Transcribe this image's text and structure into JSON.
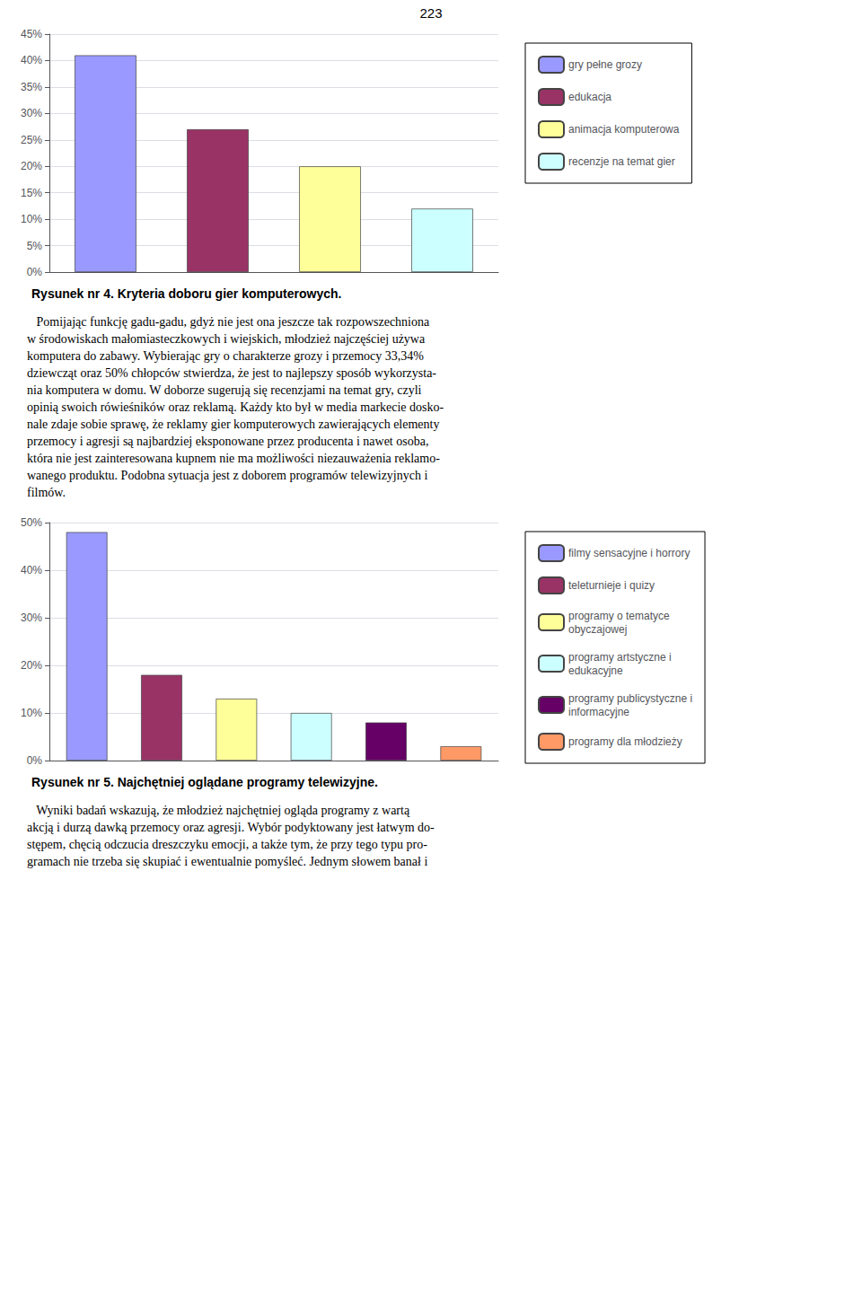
{
  "chart_data": [
    {
      "type": "bar",
      "subtitle": "223",
      "title": "Rysunek nr 4. Kryteria doboru gier komputerowych.",
      "categories": [
        "gry pełne grozy",
        "edukacja",
        "animacja komputerowa",
        "recenzje na temat gier"
      ],
      "values": [
        41,
        27,
        20,
        12
      ],
      "colors": [
        "#9999ff",
        "#993366",
        "#ffff99",
        "#ccffff"
      ],
      "ylim": [
        0,
        45
      ],
      "yticks": [
        {
          "value": 0,
          "label": "0%"
        },
        {
          "value": 5,
          "label": "5%"
        },
        {
          "value": 10,
          "label": "10%"
        },
        {
          "value": 15,
          "label": "15%"
        },
        {
          "value": 20,
          "label": "20%"
        },
        {
          "value": 25,
          "label": "25%"
        },
        {
          "value": 30,
          "label": "30%"
        },
        {
          "value": 35,
          "label": "35%"
        },
        {
          "value": 40,
          "label": "40%"
        },
        {
          "value": 45,
          "label": "45%"
        }
      ],
      "grid": true,
      "legend": "right",
      "tick_labels": "y",
      "annotations": [
        "   Pomijając funkcję gadu-gadu, gdyż nie jest ona jeszcze tak rozpowszechniona",
        "w środowiskach małomiasteczkowych i wiejskich, młodzież najczęściej używa",
        "komputera do zabawy. Wybierając gry o charakterze grozy i przemocy 33,34%",
        "dziewcząt oraz 50% chłopców stwierdza, że jest to najlepszy sposób wykorzysta-",
        "nia komputera w domu. W doborze sugerują się recenzjami na temat gry, czyli",
        "opinią swoich rówieśników oraz reklamą. Każdy kto był w media markecie dosko-",
        "nale zdaje sobie sprawę, że reklamy gier komputerowych zawierających elementy",
        "przemocy i agresji są najbardziej eksponowane przez producenta i nawet osoba,",
        "która nie jest zainteresowana kupnem nie ma możliwości niezauważenia reklamo-",
        "wanego produktu. Podobna sytuacja jest z doborem programów telewizyjnych i",
        "filmów."
      ]
    },
    {
      "type": "bar",
      "title": "Rysunek nr 5. Najchętniej oglądane programy telewizyjne.",
      "categories": [
        "filmy sensacyjne i horrory",
        "teleturnieje i quizy",
        "programy o tematyce\nobyczajowej",
        "programy artstyczne i\nedukacyjne",
        "programy publicystyczne i\ninformacyjne",
        "programy dla młodzieży"
      ],
      "values": [
        48,
        18,
        13,
        10,
        8,
        3
      ],
      "colors": [
        "#9999ff",
        "#993366",
        "#ffff99",
        "#ccffff",
        "#660066",
        "#ff9966"
      ],
      "ylim": [
        0,
        50
      ],
      "yticks": [
        {
          "value": 0,
          "label": "0%"
        },
        {
          "value": 10,
          "label": "10%"
        },
        {
          "value": 20,
          "label": "20%"
        },
        {
          "value": 30,
          "label": "30%"
        },
        {
          "value": 40,
          "label": "40%"
        },
        {
          "value": 50,
          "label": "50%"
        }
      ],
      "grid": true,
      "legend": "right",
      "tick_labels": "y",
      "annotations": [
        "   Wyniki badań wskazują, że młodzież najchętniej ogląda programy z wartą",
        "akcją i durzą dawką przemocy oraz agresji. Wybór podyktowany jest łatwym do-",
        "stępem, chęcią odczucia dreszczyku emocji, a także tym, że przy tego typu pro-",
        "gramach nie trzeba się skupiać i ewentualnie pomyśleć. Jednym słowem banał i"
      ]
    }
  ]
}
